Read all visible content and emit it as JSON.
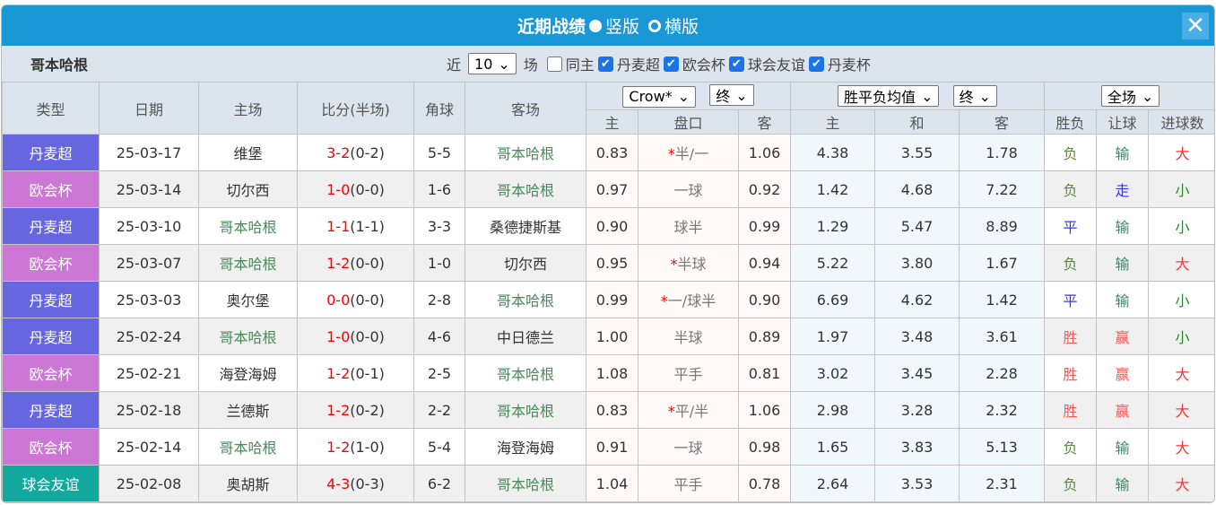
{
  "title": "近期战绩",
  "layout_options": [
    {
      "label": "竖版",
      "selected": true
    },
    {
      "label": "横版",
      "selected": false
    }
  ],
  "close_icon": "close-icon",
  "team_name": "哥本哈根",
  "filter": {
    "near_label": "近",
    "count": "10",
    "games_label": "场",
    "same_home_label": "同主",
    "same_home_checked": false,
    "leagues": [
      {
        "label": "丹麦超",
        "checked": true
      },
      {
        "label": "欧会杯",
        "checked": true
      },
      {
        "label": "球会友谊",
        "checked": true
      },
      {
        "label": "丹麦杯",
        "checked": true
      }
    ]
  },
  "selects": {
    "company": "Crow*",
    "handicap_time": "终",
    "euro_type": "胜平负均值",
    "euro_time": "终",
    "period": "全场"
  },
  "headers": {
    "type": "类型",
    "date": "日期",
    "home": "主场",
    "score": "比分(半场)",
    "corner": "角球",
    "away": "客场",
    "ah_home": "主",
    "ah_line": "盘口",
    "ah_away": "客",
    "eu_home": "主",
    "eu_draw": "和",
    "eu_away": "客",
    "result": "胜负",
    "handicap": "让球",
    "goals": "进球数"
  },
  "colors": {
    "titlebar": "#1a98d5",
    "丹麦超": "#6666e0",
    "欧会杯": "#cc77d6",
    "球会友谊": "#13a89e"
  },
  "rows": [
    {
      "type": "丹麦超",
      "date": "25-03-17",
      "home": "维堡",
      "score": "3-2",
      "half": "(0-2)",
      "corner": "5-5",
      "away": "哥本哈根",
      "ah_home": "0.83",
      "star": true,
      "line": "半/一",
      "ah_away": "1.06",
      "eu_home": "4.38",
      "eu_draw": "3.55",
      "eu_away": "1.78",
      "result": "负",
      "handicap": "输",
      "goals": "大"
    },
    {
      "type": "欧会杯",
      "date": "25-03-14",
      "home": "切尔西",
      "score": "1-0",
      "half": "(0-0)",
      "corner": "1-6",
      "away": "哥本哈根",
      "ah_home": "0.97",
      "star": false,
      "line": "一球",
      "ah_away": "0.92",
      "eu_home": "1.42",
      "eu_draw": "4.68",
      "eu_away": "7.22",
      "result": "负",
      "handicap": "走",
      "goals": "小"
    },
    {
      "type": "丹麦超",
      "date": "25-03-10",
      "home": "哥本哈根",
      "score": "1-1",
      "half": "(1-1)",
      "corner": "3-3",
      "away": "桑德捷斯基",
      "ah_home": "0.90",
      "star": false,
      "line": "球半",
      "ah_away": "0.99",
      "eu_home": "1.29",
      "eu_draw": "5.47",
      "eu_away": "8.89",
      "result": "平",
      "handicap": "输",
      "goals": "小"
    },
    {
      "type": "欧会杯",
      "date": "25-03-07",
      "home": "哥本哈根",
      "score": "1-2",
      "half": "(0-0)",
      "corner": "1-0",
      "away": "切尔西",
      "ah_home": "0.95",
      "star": true,
      "line": "半球",
      "ah_away": "0.94",
      "eu_home": "5.22",
      "eu_draw": "3.80",
      "eu_away": "1.67",
      "result": "负",
      "handicap": "输",
      "goals": "大"
    },
    {
      "type": "丹麦超",
      "date": "25-03-03",
      "home": "奥尔堡",
      "score": "0-0",
      "half": "(0-0)",
      "corner": "2-8",
      "away": "哥本哈根",
      "ah_home": "0.99",
      "star": true,
      "line": "一/球半",
      "ah_away": "0.90",
      "eu_home": "6.69",
      "eu_draw": "4.62",
      "eu_away": "1.42",
      "result": "平",
      "handicap": "输",
      "goals": "小"
    },
    {
      "type": "丹麦超",
      "date": "25-02-24",
      "home": "哥本哈根",
      "score": "1-0",
      "half": "(0-0)",
      "corner": "4-6",
      "away": "中日德兰",
      "ah_home": "1.00",
      "star": false,
      "line": "半球",
      "ah_away": "0.89",
      "eu_home": "1.97",
      "eu_draw": "3.48",
      "eu_away": "3.61",
      "result": "胜",
      "handicap": "赢",
      "goals": "小"
    },
    {
      "type": "欧会杯",
      "date": "25-02-21",
      "home": "海登海姆",
      "score": "1-2",
      "half": "(0-1)",
      "corner": "2-5",
      "away": "哥本哈根",
      "ah_home": "1.08",
      "star": false,
      "line": "平手",
      "ah_away": "0.81",
      "eu_home": "3.02",
      "eu_draw": "3.45",
      "eu_away": "2.28",
      "result": "胜",
      "handicap": "赢",
      "goals": "大"
    },
    {
      "type": "丹麦超",
      "date": "25-02-18",
      "home": "兰德斯",
      "score": "1-2",
      "half": "(0-2)",
      "corner": "2-2",
      "away": "哥本哈根",
      "ah_home": "0.83",
      "star": true,
      "line": "平/半",
      "ah_away": "1.06",
      "eu_home": "2.98",
      "eu_draw": "3.28",
      "eu_away": "2.32",
      "result": "胜",
      "handicap": "赢",
      "goals": "大"
    },
    {
      "type": "欧会杯",
      "date": "25-02-14",
      "home": "哥本哈根",
      "score": "1-2",
      "half": "(1-0)",
      "corner": "5-4",
      "away": "海登海姆",
      "ah_home": "0.91",
      "star": false,
      "line": "一球",
      "ah_away": "0.98",
      "eu_home": "1.65",
      "eu_draw": "3.83",
      "eu_away": "5.13",
      "result": "负",
      "handicap": "输",
      "goals": "大"
    },
    {
      "type": "球会友谊",
      "date": "25-02-08",
      "home": "奥胡斯",
      "score": "4-3",
      "half": "(0-3)",
      "corner": "6-2",
      "away": "哥本哈根",
      "ah_home": "1.04",
      "star": false,
      "line": "平手",
      "ah_away": "0.78",
      "eu_home": "2.64",
      "eu_draw": "3.53",
      "eu_away": "2.31",
      "result": "负",
      "handicap": "输",
      "goals": "大"
    }
  ]
}
